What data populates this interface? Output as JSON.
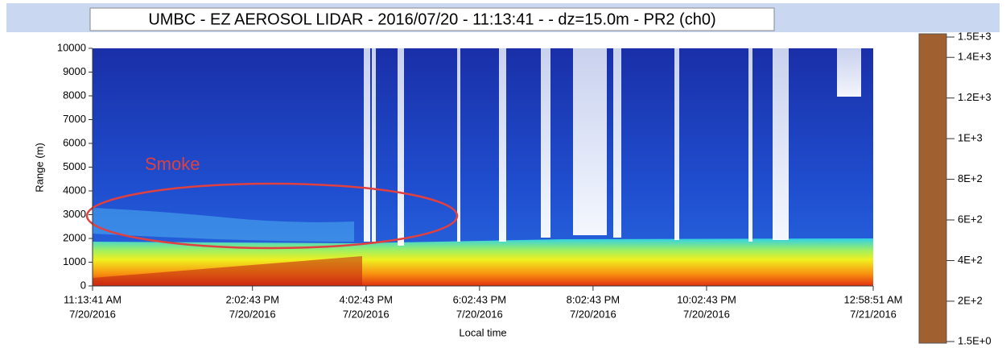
{
  "chart_data": {
    "type": "heatmap",
    "title": "UMBC - EZ AEROSOL LIDAR - 2016/07/20 - 11:13:41 -  - dz=15.0m - PR2 (ch0)",
    "x_label": "Local time",
    "y_label": "Range (m)",
    "xlim": [
      "2016-07-20T11:13:41",
      "2016-07-21T00:58:51"
    ],
    "xticks": [
      {
        "value": "2016-07-20T11:13:41",
        "label": "11:13:41 AM",
        "date": "7/20/2016"
      },
      {
        "value": "2016-07-20T14:02:43",
        "label": "2:02:43 PM",
        "date": "7/20/2016"
      },
      {
        "value": "2016-07-20T16:02:43",
        "label": "4:02:43 PM",
        "date": "7/20/2016"
      },
      {
        "value": "2016-07-20T18:02:43",
        "label": "6:02:43 PM",
        "date": "7/20/2016"
      },
      {
        "value": "2016-07-20T20:02:43",
        "label": "8:02:43 PM",
        "date": "7/20/2016"
      },
      {
        "value": "2016-07-20T22:02:43",
        "label": "10:02:43 PM",
        "date": "7/20/2016"
      },
      {
        "value": "2016-07-21T00:58:51",
        "label": "12:58:51 AM",
        "date": "7/21/2016"
      }
    ],
    "ylim": [
      0,
      10000
    ],
    "yticks": [
      0,
      1000,
      2000,
      3000,
      4000,
      5000,
      6000,
      7000,
      8000,
      9000,
      10000
    ],
    "clim": [
      1.5,
      1500
    ],
    "cticks": [
      {
        "value": 1500,
        "label": "1.5E+3"
      },
      {
        "value": 1400,
        "label": "1.4E+3"
      },
      {
        "value": 1200,
        "label": "1.2E+3"
      },
      {
        "value": 1000,
        "label": "1E+3"
      },
      {
        "value": 800,
        "label": "8E+2"
      },
      {
        "value": 600,
        "label": "6E+2"
      },
      {
        "value": 400,
        "label": "4E+2"
      },
      {
        "value": 200,
        "label": "2E+2"
      },
      {
        "value": 1.5,
        "label": "1.5E+0"
      }
    ],
    "colormap": [
      "#f4f4fa",
      "#0a1a80",
      "#1840d8",
      "#20a0f0",
      "#30e0e0",
      "#f0f020",
      "#f8a010",
      "#e82010",
      "#a01010",
      "#a06030"
    ],
    "annotation": "Smoke"
  }
}
